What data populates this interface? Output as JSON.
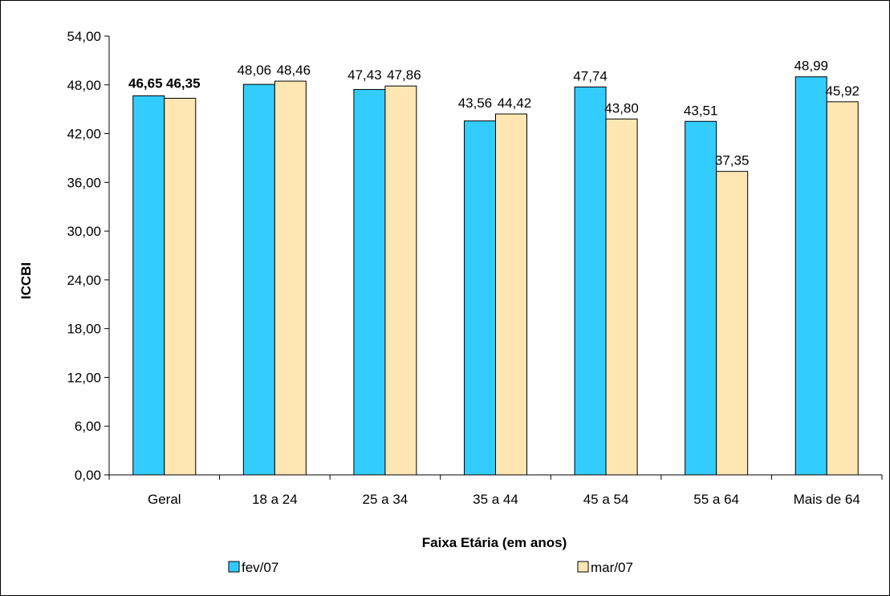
{
  "chart_data": {
    "type": "bar",
    "xlabel": "Faixa Etária (em anos)",
    "ylabel": "ICCBI",
    "categories": [
      "Geral",
      "18 a 24",
      "25 a 34",
      "35 a 44",
      "45 a 54",
      "55 a 64",
      "Mais de 64"
    ],
    "series": [
      {
        "name": "fev/07",
        "color": "#33CCFF",
        "values": [
          46.65,
          48.06,
          47.43,
          43.56,
          47.74,
          43.51,
          48.99
        ],
        "labels": [
          "46,65",
          "48,06",
          "47,43",
          "43,56",
          "47,74",
          "43,51",
          "48,99"
        ]
      },
      {
        "name": "mar/07",
        "color": "#FFE6B3",
        "values": [
          46.35,
          48.46,
          47.86,
          44.42,
          43.8,
          37.35,
          45.92
        ],
        "labels": [
          "46,35",
          "48,46",
          "47,86",
          "44,42",
          "43,80",
          "37,35",
          "45,92"
        ]
      }
    ],
    "bold_label_categories": [
      "Geral"
    ],
    "ylim": [
      0,
      54
    ],
    "yticks": [
      0,
      6,
      12,
      18,
      24,
      30,
      36,
      42,
      48,
      54
    ],
    "ytick_labels": [
      "0,00",
      "6,00",
      "12,00",
      "18,00",
      "24,00",
      "30,00",
      "36,00",
      "42,00",
      "48,00",
      "54,00"
    ],
    "grid": false,
    "legend_position": "bottom"
  }
}
